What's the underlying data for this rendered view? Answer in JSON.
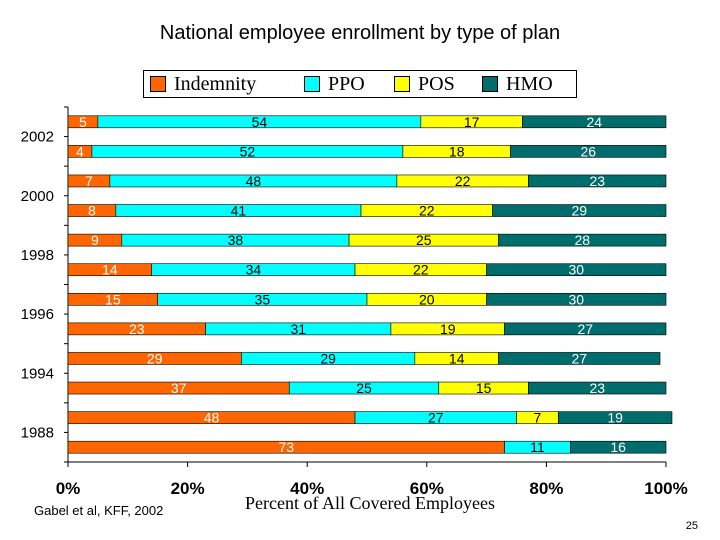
{
  "page": {
    "title": "National employee enrollment by type of plan",
    "source": "Gabel et al, KFF, 2002",
    "page_number": "25"
  },
  "chart_data": {
    "type": "bar",
    "orientation": "horizontal",
    "stacked": true,
    "title": "National employee enrollment by type of plan",
    "xlabel": "Percent of All Covered Employees",
    "ylabel": "",
    "xlim": [
      0,
      100
    ],
    "x_ticks": [
      "0%",
      "20%",
      "40%",
      "60%",
      "80%",
      "100%"
    ],
    "y_tick_labels": [
      "2002",
      "2000",
      "1998",
      "1996",
      "1994",
      "1988"
    ],
    "legend_position": "top",
    "grid": false,
    "colors": {
      "Indemnity": "#ff6600",
      "PPO": "#00ffff",
      "POS": "#ffff00",
      "HMO": "#006d6d"
    },
    "legend_labels": [
      "Indemnity",
      "PPO",
      "POS",
      "HMO"
    ],
    "series": [
      {
        "name": "Indemnity",
        "values": [
          5,
          4,
          7,
          8,
          9,
          14,
          15,
          23,
          29,
          37,
          48,
          73
        ]
      },
      {
        "name": "PPO",
        "values": [
          54,
          52,
          48,
          41,
          38,
          34,
          35,
          31,
          29,
          25,
          27,
          11
        ]
      },
      {
        "name": "POS",
        "values": [
          17,
          18,
          22,
          22,
          25,
          22,
          20,
          19,
          14,
          15,
          7,
          0
        ]
      },
      {
        "name": "HMO",
        "values": [
          24,
          26,
          23,
          29,
          28,
          30,
          30,
          27,
          27,
          23,
          19,
          16
        ]
      }
    ],
    "data_labels": [
      [
        "5",
        "54",
        "17",
        "24"
      ],
      [
        "4",
        "52",
        "18",
        "26"
      ],
      [
        "7",
        "48",
        "22",
        "23"
      ],
      [
        "8",
        "41",
        "22",
        "29"
      ],
      [
        "9",
        "38",
        "25",
        "28"
      ],
      [
        "14",
        "34",
        "22",
        "30"
      ],
      [
        "15",
        "35",
        "20",
        "30"
      ],
      [
        "23",
        "31",
        "19",
        "27"
      ],
      [
        "29",
        "29",
        "14",
        "27"
      ],
      [
        "37",
        "25",
        "15",
        "23"
      ],
      [
        "48",
        "27",
        "7",
        "19"
      ],
      [
        "73",
        "11",
        "",
        "16"
      ]
    ]
  }
}
